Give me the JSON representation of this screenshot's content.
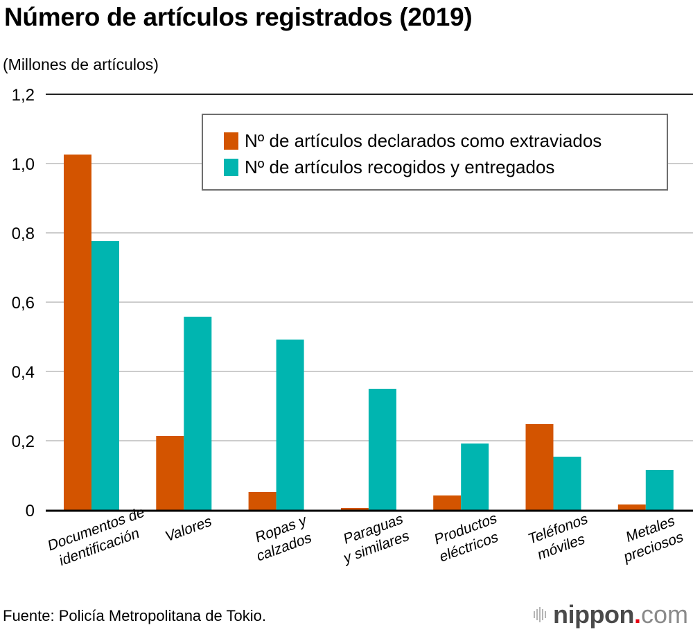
{
  "header": {
    "title": "Número de artículos registrados (2019)",
    "unit_label": "(Millones de artículos)"
  },
  "legend": {
    "items": [
      {
        "label": "Nº de artículos declarados como extraviados",
        "color": "#d35400"
      },
      {
        "label": "Nº de artículos recogidos y entregados",
        "color": "#00b5b0"
      }
    ]
  },
  "footer": {
    "source": "Fuente: Policía Metropolitana de Tokio.",
    "logo_word": "nippon",
    "logo_dot": ".",
    "logo_tld": "com"
  },
  "chart_data": {
    "type": "bar",
    "title": "Número de artículos registrados (2019)",
    "ylabel": "(Millones de artículos)",
    "xlabel": "",
    "ylim": [
      0,
      1.2
    ],
    "yticks": [
      0,
      0.2,
      0.4,
      0.6,
      0.8,
      1.0,
      1.2
    ],
    "ytick_labels": [
      "0",
      "0,2",
      "0,4",
      "0,6",
      "0,8",
      "1,0",
      "1,2"
    ],
    "grid": true,
    "legend_position": "top-right",
    "categories": [
      [
        "Documentos de",
        "identificación"
      ],
      [
        "Valores"
      ],
      [
        "Ropas y",
        "calzados"
      ],
      [
        "Paraguas",
        "y similares"
      ],
      [
        "Productos",
        "eléctricos"
      ],
      [
        "Teléfonos",
        "móviles"
      ],
      [
        "Metales",
        "preciosos"
      ]
    ],
    "series": [
      {
        "name": "Nº de artículos declarados como extraviados",
        "color": "#d35400",
        "values": [
          1.026,
          0.214,
          0.052,
          0.006,
          0.042,
          0.248,
          0.016
        ]
      },
      {
        "name": "Nº de artículos recogidos y entregados",
        "color": "#00b5b0",
        "values": [
          0.776,
          0.558,
          0.492,
          0.35,
          0.192,
          0.154,
          0.116
        ]
      }
    ]
  }
}
